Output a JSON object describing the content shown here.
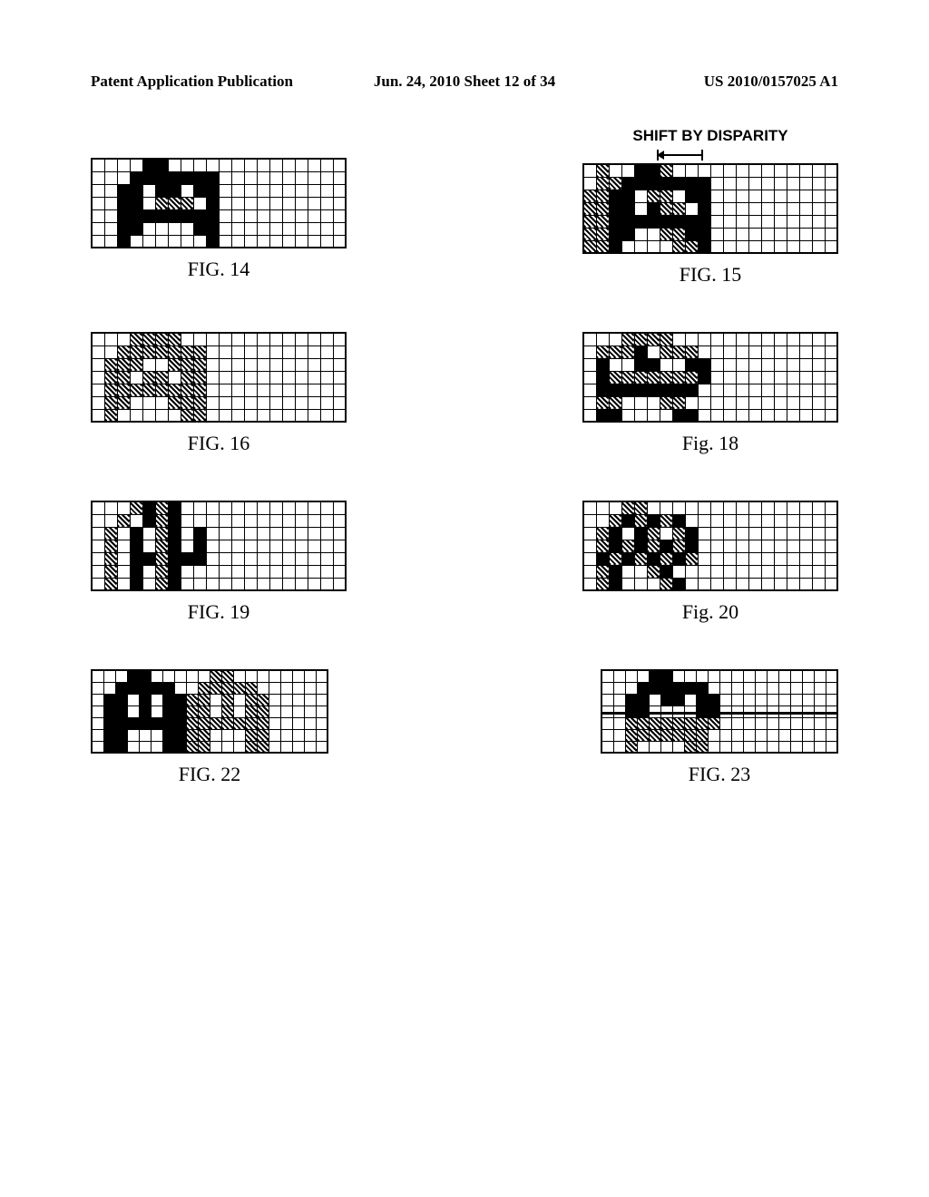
{
  "header": {
    "left": "Patent Application Publication",
    "center": "Jun. 24, 2010  Sheet 12 of 34",
    "right": "US 2010/0157025 A1"
  },
  "topLabel": "SHIFT BY DISPARITY",
  "figures": {
    "fig14": {
      "caption": "FIG. 14",
      "cols": 20,
      "rows": 7,
      "cells": [
        [
          0,
          0,
          0,
          0,
          2,
          2,
          0,
          0,
          0,
          0,
          0,
          0,
          0,
          0,
          0,
          0,
          0,
          0,
          0,
          0
        ],
        [
          0,
          0,
          0,
          2,
          2,
          2,
          2,
          2,
          2,
          2,
          0,
          0,
          0,
          0,
          0,
          0,
          0,
          0,
          0,
          0
        ],
        [
          0,
          0,
          2,
          2,
          0,
          2,
          2,
          0,
          2,
          2,
          0,
          0,
          0,
          0,
          0,
          0,
          0,
          0,
          0,
          0
        ],
        [
          0,
          0,
          2,
          2,
          0,
          1,
          1,
          1,
          0,
          2,
          0,
          0,
          0,
          0,
          0,
          0,
          0,
          0,
          0,
          0
        ],
        [
          0,
          0,
          2,
          2,
          2,
          2,
          2,
          2,
          2,
          2,
          0,
          0,
          0,
          0,
          0,
          0,
          0,
          0,
          0,
          0
        ],
        [
          0,
          0,
          2,
          2,
          0,
          0,
          0,
          0,
          2,
          2,
          0,
          0,
          0,
          0,
          0,
          0,
          0,
          0,
          0,
          0
        ],
        [
          0,
          0,
          2,
          0,
          0,
          0,
          0,
          0,
          0,
          2,
          0,
          0,
          0,
          0,
          0,
          0,
          0,
          0,
          0,
          0
        ]
      ]
    },
    "fig15": {
      "caption": "FIG. 15",
      "cols": 20,
      "rows": 7,
      "cells": [
        [
          0,
          1,
          0,
          0,
          2,
          2,
          1,
          0,
          0,
          0,
          0,
          0,
          0,
          0,
          0,
          0,
          0,
          0,
          0,
          0
        ],
        [
          0,
          1,
          1,
          2,
          2,
          2,
          2,
          2,
          2,
          2,
          0,
          0,
          0,
          0,
          0,
          0,
          0,
          0,
          0,
          0
        ],
        [
          1,
          1,
          2,
          2,
          0,
          1,
          1,
          0,
          2,
          2,
          0,
          0,
          0,
          0,
          0,
          0,
          0,
          0,
          0,
          0
        ],
        [
          1,
          1,
          2,
          2,
          0,
          2,
          1,
          1,
          0,
          2,
          0,
          0,
          0,
          0,
          0,
          0,
          0,
          0,
          0,
          0
        ],
        [
          1,
          1,
          2,
          2,
          2,
          2,
          2,
          2,
          2,
          2,
          0,
          0,
          0,
          0,
          0,
          0,
          0,
          0,
          0,
          0
        ],
        [
          1,
          1,
          2,
          2,
          0,
          0,
          1,
          1,
          2,
          2,
          0,
          0,
          0,
          0,
          0,
          0,
          0,
          0,
          0,
          0
        ],
        [
          1,
          1,
          2,
          0,
          0,
          0,
          0,
          1,
          1,
          2,
          0,
          0,
          0,
          0,
          0,
          0,
          0,
          0,
          0,
          0
        ]
      ]
    },
    "fig16": {
      "caption": "FIG. 16",
      "cols": 20,
      "rows": 7,
      "cells": [
        [
          0,
          0,
          0,
          1,
          1,
          1,
          1,
          0,
          0,
          0,
          0,
          0,
          0,
          0,
          0,
          0,
          0,
          0,
          0,
          0
        ],
        [
          0,
          0,
          1,
          1,
          1,
          1,
          1,
          1,
          1,
          0,
          0,
          0,
          0,
          0,
          0,
          0,
          0,
          0,
          0,
          0
        ],
        [
          0,
          1,
          1,
          1,
          0,
          0,
          1,
          1,
          1,
          0,
          0,
          0,
          0,
          0,
          0,
          0,
          0,
          0,
          0,
          0
        ],
        [
          0,
          1,
          1,
          0,
          1,
          1,
          0,
          1,
          1,
          0,
          0,
          0,
          0,
          0,
          0,
          0,
          0,
          0,
          0,
          0
        ],
        [
          0,
          1,
          1,
          1,
          1,
          1,
          1,
          1,
          1,
          0,
          0,
          0,
          0,
          0,
          0,
          0,
          0,
          0,
          0,
          0
        ],
        [
          0,
          1,
          1,
          0,
          0,
          0,
          1,
          1,
          1,
          0,
          0,
          0,
          0,
          0,
          0,
          0,
          0,
          0,
          0,
          0
        ],
        [
          0,
          1,
          0,
          0,
          0,
          0,
          0,
          1,
          1,
          0,
          0,
          0,
          0,
          0,
          0,
          0,
          0,
          0,
          0,
          0
        ]
      ]
    },
    "fig18": {
      "caption": "Fig. 18",
      "cols": 20,
      "rows": 7,
      "cells": [
        [
          0,
          0,
          0,
          1,
          1,
          1,
          1,
          0,
          0,
          0,
          0,
          0,
          0,
          0,
          0,
          0,
          0,
          0,
          0,
          0
        ],
        [
          0,
          1,
          1,
          1,
          2,
          0,
          1,
          1,
          1,
          0,
          0,
          0,
          0,
          0,
          0,
          0,
          0,
          0,
          0,
          0
        ],
        [
          0,
          2,
          0,
          0,
          2,
          2,
          0,
          0,
          2,
          2,
          0,
          0,
          0,
          0,
          0,
          0,
          0,
          0,
          0,
          0
        ],
        [
          0,
          2,
          1,
          1,
          1,
          1,
          1,
          1,
          1,
          2,
          0,
          0,
          0,
          0,
          0,
          0,
          0,
          0,
          0,
          0
        ],
        [
          0,
          2,
          2,
          2,
          2,
          2,
          2,
          2,
          2,
          0,
          0,
          0,
          0,
          0,
          0,
          0,
          0,
          0,
          0,
          0
        ],
        [
          0,
          1,
          1,
          0,
          0,
          0,
          1,
          1,
          0,
          0,
          0,
          0,
          0,
          0,
          0,
          0,
          0,
          0,
          0,
          0
        ],
        [
          0,
          2,
          2,
          0,
          0,
          0,
          0,
          2,
          2,
          0,
          0,
          0,
          0,
          0,
          0,
          0,
          0,
          0,
          0,
          0
        ]
      ]
    },
    "fig19": {
      "caption": "FIG. 19",
      "cols": 20,
      "rows": 7,
      "cells": [
        [
          0,
          0,
          0,
          1,
          2,
          1,
          2,
          0,
          0,
          0,
          0,
          0,
          0,
          0,
          0,
          0,
          0,
          0,
          0,
          0
        ],
        [
          0,
          0,
          1,
          0,
          2,
          1,
          2,
          0,
          0,
          0,
          0,
          0,
          0,
          0,
          0,
          0,
          0,
          0,
          0,
          0
        ],
        [
          0,
          1,
          0,
          2,
          0,
          1,
          2,
          0,
          2,
          0,
          0,
          0,
          0,
          0,
          0,
          0,
          0,
          0,
          0,
          0
        ],
        [
          0,
          1,
          0,
          2,
          0,
          1,
          2,
          0,
          2,
          0,
          0,
          0,
          0,
          0,
          0,
          0,
          0,
          0,
          0,
          0
        ],
        [
          0,
          1,
          0,
          2,
          2,
          1,
          2,
          2,
          2,
          0,
          0,
          0,
          0,
          0,
          0,
          0,
          0,
          0,
          0,
          0
        ],
        [
          0,
          1,
          0,
          2,
          0,
          1,
          2,
          0,
          0,
          0,
          0,
          0,
          0,
          0,
          0,
          0,
          0,
          0,
          0,
          0
        ],
        [
          0,
          1,
          0,
          2,
          0,
          1,
          2,
          0,
          0,
          0,
          0,
          0,
          0,
          0,
          0,
          0,
          0,
          0,
          0,
          0
        ]
      ]
    },
    "fig20": {
      "caption": "Fig. 20",
      "cols": 20,
      "rows": 7,
      "cells": [
        [
          0,
          0,
          0,
          1,
          1,
          0,
          0,
          0,
          0,
          0,
          0,
          0,
          0,
          0,
          0,
          0,
          0,
          0,
          0,
          0
        ],
        [
          0,
          0,
          1,
          2,
          1,
          2,
          1,
          2,
          0,
          0,
          0,
          0,
          0,
          0,
          0,
          0,
          0,
          0,
          0,
          0
        ],
        [
          0,
          1,
          2,
          0,
          2,
          1,
          0,
          1,
          2,
          0,
          0,
          0,
          0,
          0,
          0,
          0,
          0,
          0,
          0,
          0
        ],
        [
          0,
          1,
          2,
          1,
          2,
          1,
          2,
          1,
          2,
          0,
          0,
          0,
          0,
          0,
          0,
          0,
          0,
          0,
          0,
          0
        ],
        [
          0,
          2,
          1,
          2,
          1,
          2,
          1,
          2,
          1,
          0,
          0,
          0,
          0,
          0,
          0,
          0,
          0,
          0,
          0,
          0
        ],
        [
          0,
          1,
          2,
          0,
          0,
          1,
          2,
          0,
          0,
          0,
          0,
          0,
          0,
          0,
          0,
          0,
          0,
          0,
          0,
          0
        ],
        [
          0,
          1,
          2,
          0,
          0,
          0,
          1,
          2,
          0,
          0,
          0,
          0,
          0,
          0,
          0,
          0,
          0,
          0,
          0,
          0
        ]
      ]
    },
    "fig22": {
      "caption": "FIG. 22",
      "cols": 20,
      "rows": 7,
      "cells": [
        [
          0,
          0,
          0,
          2,
          2,
          0,
          0,
          0,
          0,
          0,
          1,
          1,
          0,
          0,
          0,
          0,
          0,
          0,
          0,
          0
        ],
        [
          0,
          0,
          2,
          2,
          2,
          2,
          2,
          0,
          0,
          1,
          1,
          1,
          1,
          1,
          0,
          0,
          0,
          0,
          0,
          0
        ],
        [
          0,
          2,
          2,
          0,
          2,
          0,
          2,
          2,
          1,
          1,
          0,
          1,
          0,
          1,
          1,
          0,
          0,
          0,
          0,
          0
        ],
        [
          0,
          2,
          2,
          0,
          2,
          0,
          2,
          2,
          1,
          1,
          0,
          1,
          0,
          1,
          1,
          0,
          0,
          0,
          0,
          0
        ],
        [
          0,
          2,
          2,
          2,
          2,
          2,
          2,
          2,
          1,
          1,
          1,
          1,
          1,
          1,
          1,
          0,
          0,
          0,
          0,
          0
        ],
        [
          0,
          2,
          2,
          0,
          0,
          0,
          2,
          2,
          1,
          1,
          0,
          0,
          0,
          1,
          1,
          0,
          0,
          0,
          0,
          0
        ],
        [
          0,
          2,
          2,
          0,
          0,
          0,
          2,
          2,
          1,
          1,
          0,
          0,
          0,
          1,
          1,
          0,
          0,
          0,
          0,
          0
        ]
      ]
    },
    "fig23": {
      "caption": "FIG. 23",
      "cols": 20,
      "rows": 7,
      "hlineRow": 3,
      "cells": [
        [
          0,
          0,
          0,
          0,
          2,
          2,
          0,
          0,
          0,
          0,
          0,
          0,
          0,
          0,
          0,
          0,
          0,
          0,
          0,
          0
        ],
        [
          0,
          0,
          0,
          2,
          2,
          2,
          2,
          2,
          2,
          0,
          0,
          0,
          0,
          0,
          0,
          0,
          0,
          0,
          0,
          0
        ],
        [
          0,
          0,
          2,
          2,
          0,
          2,
          2,
          0,
          2,
          2,
          0,
          0,
          0,
          0,
          0,
          0,
          0,
          0,
          0,
          0
        ],
        [
          0,
          0,
          2,
          2,
          0,
          0,
          0,
          0,
          2,
          2,
          0,
          0,
          0,
          0,
          0,
          0,
          0,
          0,
          0,
          0
        ],
        [
          0,
          0,
          1,
          1,
          1,
          1,
          1,
          1,
          1,
          1,
          0,
          0,
          0,
          0,
          0,
          0,
          0,
          0,
          0,
          0
        ],
        [
          0,
          0,
          1,
          1,
          1,
          1,
          1,
          1,
          1,
          0,
          0,
          0,
          0,
          0,
          0,
          0,
          0,
          0,
          0,
          0
        ],
        [
          0,
          0,
          1,
          0,
          0,
          0,
          0,
          1,
          1,
          0,
          0,
          0,
          0,
          0,
          0,
          0,
          0,
          0,
          0,
          0
        ]
      ]
    }
  }
}
